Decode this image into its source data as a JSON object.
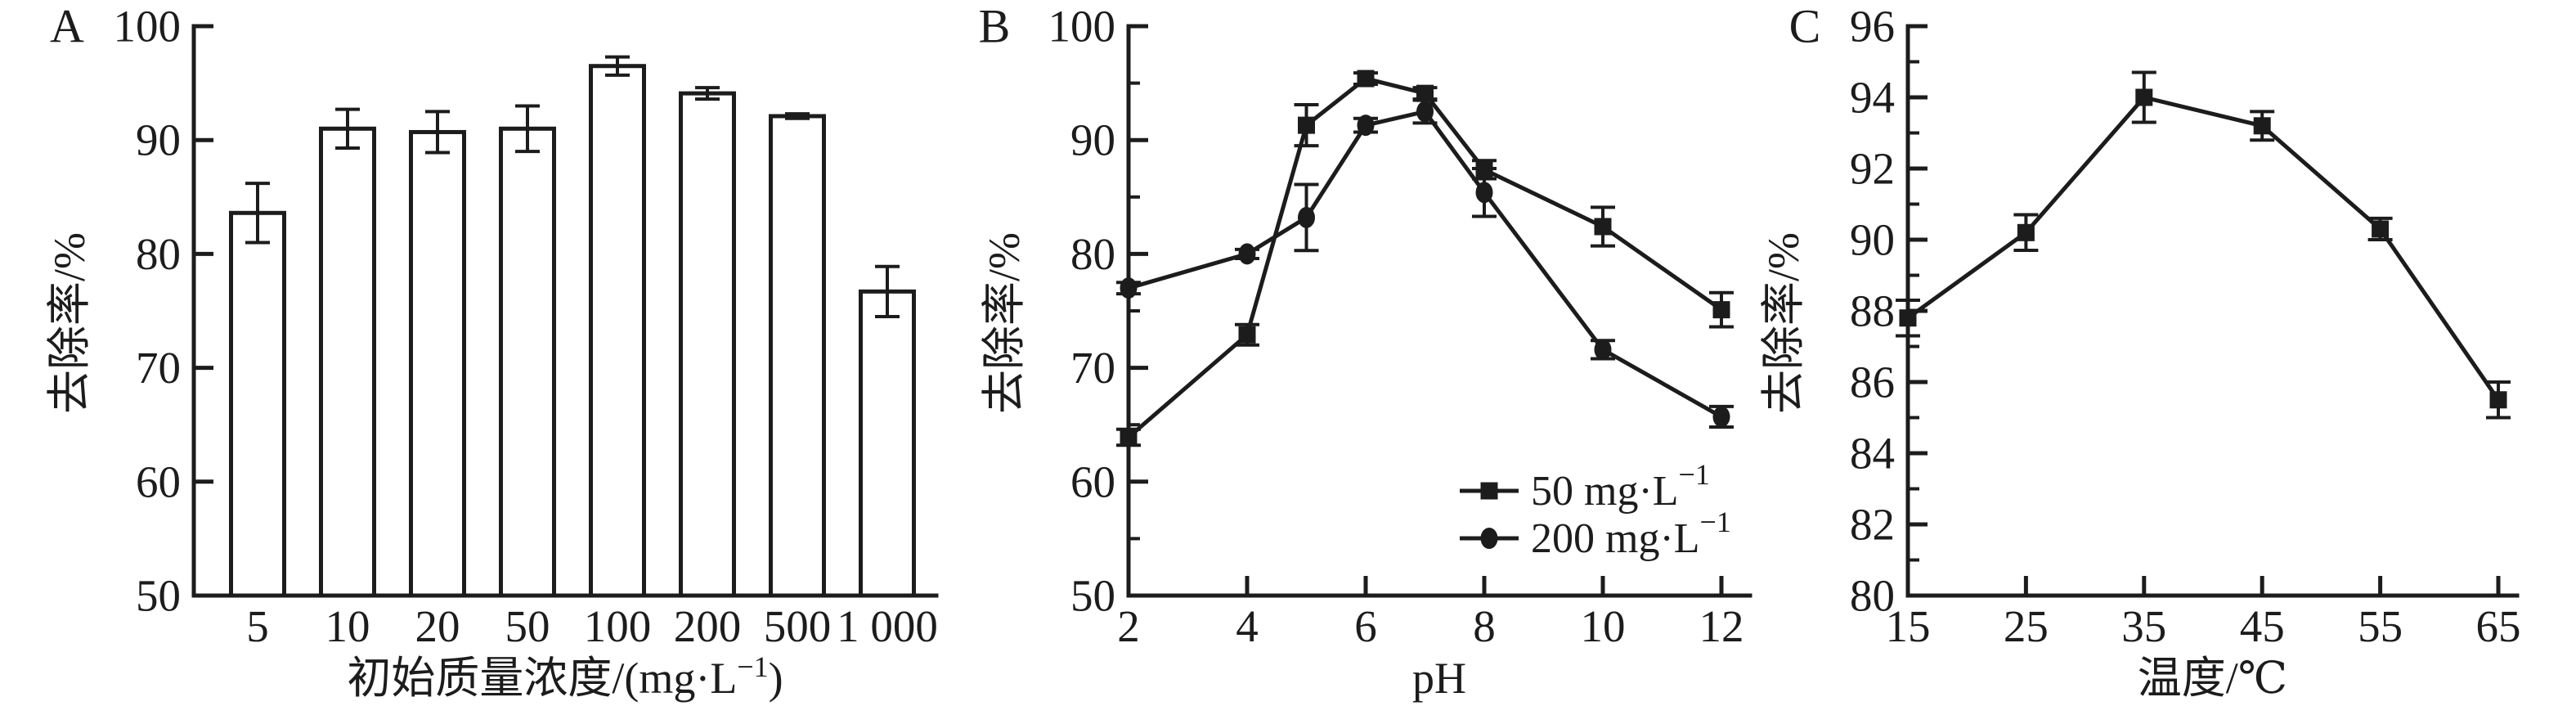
{
  "page": {
    "background": "#ffffff",
    "ink_color": "#1c1c1c"
  },
  "chart_data": [
    {
      "panel": "A",
      "type": "bar",
      "xlabel": "初始质量浓度/(mg·L⁻¹)",
      "ylabel": "去除率/%",
      "categories": [
        "5",
        "10",
        "20",
        "50",
        "100",
        "200",
        "500",
        "1 000"
      ],
      "values": [
        83.6,
        91.0,
        90.7,
        91.0,
        96.5,
        94.1,
        92.1,
        76.7
      ],
      "errors": [
        2.6,
        1.7,
        1.8,
        2.0,
        0.8,
        0.5,
        0.2,
        2.2
      ],
      "ylim": [
        50,
        100
      ],
      "yticks": [
        50,
        60,
        70,
        80,
        90,
        100
      ],
      "y_minor_ticks": [],
      "bar_fill": "#ffffff",
      "grid": false
    },
    {
      "panel": "B",
      "type": "line",
      "xlabel": "pH",
      "ylabel": "去除率/%",
      "x": [
        2,
        4,
        5,
        6,
        7,
        8,
        10,
        12
      ],
      "xticks": [
        2,
        4,
        6,
        8,
        10,
        12
      ],
      "xlim": [
        2,
        12
      ],
      "series": [
        {
          "name": "50 mg·L⁻¹",
          "marker": "square",
          "values": [
            63.9,
            72.9,
            91.3,
            95.4,
            94.1,
            87.4,
            82.4,
            75.1
          ],
          "errors": [
            0.7,
            0.9,
            1.8,
            0.5,
            0.5,
            0.8,
            1.7,
            1.5
          ]
        },
        {
          "name": "200 mg·L⁻¹",
          "marker": "circle",
          "values": [
            77.0,
            80.0,
            83.2,
            91.3,
            92.5,
            85.4,
            71.6,
            65.7
          ],
          "errors": [
            0.5,
            0.4,
            2.9,
            0.6,
            1.0,
            2.1,
            0.8,
            0.9
          ]
        }
      ],
      "ylim": [
        50,
        100
      ],
      "yticks": [
        50,
        60,
        70,
        80,
        90,
        100
      ],
      "y_minor_ticks": [
        55,
        65,
        75,
        85,
        95
      ],
      "legend_position": "lower-right",
      "grid": false
    },
    {
      "panel": "C",
      "type": "line",
      "xlabel": "温度/℃",
      "ylabel": "去除率/%",
      "x": [
        15,
        25,
        35,
        45,
        55,
        65
      ],
      "xticks": [
        15,
        25,
        35,
        45,
        55,
        65
      ],
      "xlim": [
        15,
        65
      ],
      "series": [
        {
          "name": "",
          "marker": "square",
          "values": [
            87.8,
            90.2,
            94.0,
            93.2,
            90.3,
            85.5
          ],
          "errors": [
            0.5,
            0.5,
            0.7,
            0.4,
            0.3,
            0.5
          ]
        }
      ],
      "ylim": [
        80,
        96
      ],
      "yticks": [
        80,
        82,
        84,
        86,
        88,
        90,
        92,
        94,
        96
      ],
      "y_minor_ticks": [
        81,
        83,
        85,
        87,
        89,
        91,
        93,
        95
      ],
      "grid": false
    }
  ]
}
